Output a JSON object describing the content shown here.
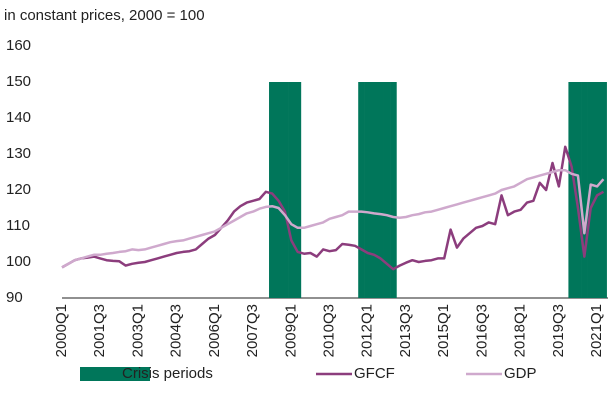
{
  "chart_data": {
    "type": "line",
    "subtitle": "in constant prices, 2000 = 100",
    "categories": [
      "2000Q1",
      null,
      null,
      null,
      null,
      null,
      "2001Q3",
      null,
      null,
      null,
      null,
      null,
      "2003Q1",
      null,
      null,
      null,
      null,
      null,
      "2004Q3",
      null,
      null,
      null,
      null,
      null,
      "2006Q1",
      null,
      null,
      null,
      null,
      null,
      "2007Q3",
      null,
      null,
      null,
      null,
      null,
      "2009Q1",
      null,
      null,
      null,
      null,
      null,
      "2010Q3",
      null,
      null,
      null,
      null,
      null,
      "2012Q1",
      null,
      null,
      null,
      null,
      null,
      "2013Q3",
      null,
      null,
      null,
      null,
      null,
      "2015Q1",
      null,
      null,
      null,
      null,
      null,
      "2016Q3",
      null,
      null,
      null,
      null,
      null,
      "2018Q1",
      null,
      null,
      null,
      null,
      null,
      "2019Q3",
      null,
      null,
      null,
      null,
      null,
      "2021Q1",
      null
    ],
    "series": [
      {
        "name": "Crisis periods",
        "type": "bar",
        "color": "#00765a",
        "values": [
          null,
          null,
          null,
          null,
          null,
          null,
          null,
          null,
          null,
          null,
          null,
          null,
          null,
          null,
          null,
          null,
          null,
          null,
          null,
          null,
          null,
          null,
          null,
          null,
          null,
          null,
          null,
          null,
          null,
          null,
          null,
          null,
          null,
          150,
          150,
          150,
          150,
          150,
          null,
          null,
          null,
          null,
          null,
          null,
          null,
          null,
          null,
          150,
          150,
          150,
          150,
          150,
          150,
          null,
          null,
          null,
          null,
          null,
          null,
          null,
          null,
          null,
          null,
          null,
          null,
          null,
          null,
          null,
          null,
          null,
          null,
          null,
          null,
          null,
          null,
          null,
          null,
          null,
          null,
          null,
          150,
          150,
          150,
          150,
          150,
          150
        ]
      },
      {
        "name": "GFCF",
        "type": "line",
        "color": "#8c3d7d",
        "values": [
          98.5,
          99.5,
          100.5,
          101,
          101.2,
          101.5,
          101,
          100.5,
          100.3,
          100.2,
          99,
          99.5,
          99.8,
          100,
          100.5,
          101,
          101.5,
          102,
          102.5,
          102.8,
          103,
          103.5,
          105,
          106.5,
          107.5,
          109.5,
          111.5,
          114,
          115.5,
          116.5,
          117,
          117.5,
          119.5,
          119,
          117,
          114,
          106,
          102.8,
          102.3,
          102.5,
          101.5,
          103.5,
          103,
          103.3,
          105,
          104.8,
          104.5,
          103.5,
          102.5,
          102,
          101,
          99.5,
          98,
          99,
          99.8,
          100.5,
          100,
          100.3,
          100.5,
          101,
          101,
          109,
          104,
          106.5,
          108,
          109.5,
          110,
          111,
          110.5,
          118.5,
          113,
          114,
          114.5,
          116.5,
          117,
          122,
          120,
          127.5,
          121,
          132,
          126.5,
          115,
          101.5,
          115,
          118.5,
          119.5
        ]
      },
      {
        "name": "GDP",
        "type": "line",
        "color": "#cfa9cd",
        "values": [
          98.5,
          99.5,
          100.5,
          101,
          101.5,
          102,
          102,
          102.3,
          102.5,
          102.8,
          103,
          103.5,
          103.3,
          103.5,
          104,
          104.5,
          105,
          105.5,
          105.8,
          106,
          106.5,
          107,
          107.5,
          108,
          108.5,
          109.5,
          110.5,
          111.5,
          112.5,
          113.5,
          114,
          114.8,
          115.3,
          115.5,
          115,
          113,
          110.5,
          109.5,
          109.5,
          110,
          110.5,
          111,
          112,
          112.5,
          113,
          114,
          114,
          114,
          113.8,
          113.5,
          113.3,
          113,
          112.5,
          112.3,
          112.5,
          113,
          113.3,
          113.8,
          114,
          114.5,
          115,
          115.5,
          116,
          116.5,
          117,
          117.5,
          118,
          118.5,
          119,
          120,
          120.5,
          121,
          122,
          123,
          123.5,
          124,
          124.5,
          125,
          125.5,
          125.5,
          124.5,
          124,
          108,
          121.5,
          121,
          123
        ]
      }
    ],
    "ylim": [
      90,
      160
    ],
    "yticks": [
      90,
      100,
      110,
      120,
      130,
      140,
      150,
      160
    ]
  }
}
